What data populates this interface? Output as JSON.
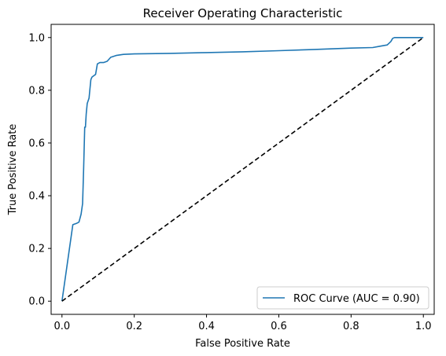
{
  "chart_data": {
    "type": "line",
    "title": "Receiver Operating Characteristic",
    "xlabel": "False Positive Rate",
    "ylabel": "True Positive Rate",
    "xlim": [
      -0.03,
      1.03
    ],
    "ylim": [
      -0.05,
      1.05
    ],
    "x_ticks": [
      "0.0",
      "0.2",
      "0.4",
      "0.6",
      "0.8",
      "1.0"
    ],
    "y_ticks": [
      "0.0",
      "0.2",
      "0.4",
      "0.6",
      "0.8",
      "1.0"
    ],
    "grid": false,
    "legend_position": "lower right",
    "series": [
      {
        "name": "ROC Curve (AUC = 0.90)",
        "color": "#1f77b4",
        "style": "solid",
        "x": [
          0.0,
          0.03,
          0.04,
          0.047,
          0.053,
          0.057,
          0.06,
          0.063,
          0.065,
          0.067,
          0.07,
          0.075,
          0.08,
          0.083,
          0.088,
          0.093,
          0.098,
          0.105,
          0.115,
          0.125,
          0.135,
          0.15,
          0.17,
          0.2,
          0.3,
          0.4,
          0.5,
          0.6,
          0.7,
          0.8,
          0.86,
          0.88,
          0.9,
          0.91,
          0.915,
          0.92,
          1.0
        ],
        "y": [
          0.0,
          0.29,
          0.295,
          0.3,
          0.33,
          0.37,
          0.5,
          0.66,
          0.66,
          0.71,
          0.75,
          0.77,
          0.84,
          0.85,
          0.855,
          0.86,
          0.9,
          0.905,
          0.905,
          0.91,
          0.925,
          0.932,
          0.936,
          0.938,
          0.94,
          0.943,
          0.946,
          0.95,
          0.955,
          0.96,
          0.962,
          0.967,
          0.972,
          0.985,
          0.997,
          1.0,
          1.0
        ]
      },
      {
        "name": "",
        "color": "#000000",
        "style": "dashed",
        "x": [
          0.0,
          1.0
        ],
        "y": [
          0.0,
          1.0
        ]
      }
    ]
  }
}
